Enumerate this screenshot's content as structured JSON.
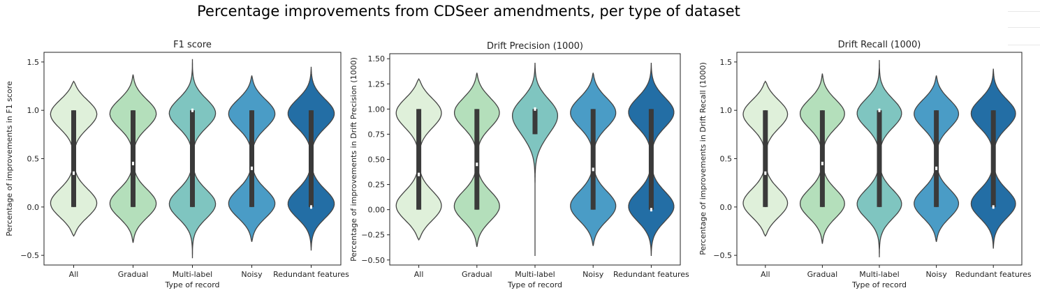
{
  "figure_title": "Percentage improvements from CDSeer amendments, per type of dataset",
  "colors": [
    "#dff0da",
    "#b4dfbb",
    "#7fc5c0",
    "#4a9cc6",
    "#236ea5"
  ],
  "chart_data": [
    {
      "type": "violin",
      "title": "F1 score",
      "xlabel": "Type of record",
      "ylabel": "Percentage of improvements in F1 score",
      "categories": [
        "All",
        "Gradual",
        "Multi-label",
        "Noisy",
        "Redundant features"
      ],
      "ylim": [
        -0.6,
        1.6
      ],
      "yticks": [
        -0.5,
        0.0,
        0.5,
        1.0,
        1.5
      ],
      "ytick_labels": [
        "−0.5",
        "0.0",
        "0.5",
        "1.0",
        "1.5"
      ],
      "grid": false,
      "violins": [
        {
          "min": -0.3,
          "max": 1.3,
          "q1": 0.0,
          "median": 0.35,
          "q3": 1.0
        },
        {
          "min": -0.37,
          "max": 1.37,
          "q1": 0.0,
          "median": 0.45,
          "q3": 1.0
        },
        {
          "min": -0.53,
          "max": 1.53,
          "q1": 0.0,
          "median": 1.0,
          "q3": 1.0
        },
        {
          "min": -0.36,
          "max": 1.36,
          "q1": 0.0,
          "median": 0.4,
          "q3": 1.0
        },
        {
          "min": -0.45,
          "max": 1.45,
          "q1": 0.0,
          "median": 0.0,
          "q3": 1.0
        }
      ]
    },
    {
      "type": "violin",
      "title": "Drift Precision (1000)",
      "xlabel": "Type of record",
      "ylabel": "Percentage of improvements in Drift Precision (1000)",
      "categories": [
        "All",
        "Gradual",
        "Multi-label",
        "Noisy",
        "Redundant features"
      ],
      "ylim": [
        -0.55,
        1.55
      ],
      "yticks": [
        -0.5,
        -0.25,
        0.0,
        0.25,
        0.5,
        0.75,
        1.0,
        1.25,
        1.5
      ],
      "ytick_labels": [
        "−0.50",
        "−0.25",
        "0.00",
        "0.25",
        "0.50",
        "0.75",
        "1.00",
        "1.25",
        "1.50"
      ],
      "grid": false,
      "violins": [
        {
          "min": -0.3,
          "max": 1.3,
          "q1": 0.0,
          "median": 0.35,
          "q3": 1.0
        },
        {
          "min": -0.37,
          "max": 1.36,
          "q1": 0.0,
          "median": 0.45,
          "q3": 1.0
        },
        {
          "min": -0.46,
          "max": 1.46,
          "q1": 0.75,
          "median": 1.0,
          "q3": 1.0
        },
        {
          "min": -0.36,
          "max": 1.36,
          "q1": 0.0,
          "median": 0.4,
          "q3": 1.0
        },
        {
          "min": -0.46,
          "max": 1.46,
          "q1": 0.0,
          "median": 0.0,
          "q3": 1.0
        }
      ]
    },
    {
      "type": "violin",
      "title": "Drift Recall (1000)",
      "xlabel": "Type of record",
      "ylabel": "Percentage of improvements in Drift Recall (1000)",
      "categories": [
        "All",
        "Gradual",
        "Multi-label",
        "Noisy",
        "Redundant features"
      ],
      "ylim": [
        -0.6,
        1.6
      ],
      "yticks": [
        -0.5,
        0.0,
        0.5,
        1.0,
        1.5
      ],
      "ytick_labels": [
        "−0.5",
        "0.0",
        "0.5",
        "1.0",
        "1.5"
      ],
      "grid": false,
      "violins": [
        {
          "min": -0.3,
          "max": 1.3,
          "q1": 0.0,
          "median": 0.35,
          "q3": 1.0
        },
        {
          "min": -0.38,
          "max": 1.38,
          "q1": 0.0,
          "median": 0.45,
          "q3": 1.0
        },
        {
          "min": -0.52,
          "max": 1.52,
          "q1": 0.0,
          "median": 1.0,
          "q3": 1.0
        },
        {
          "min": -0.36,
          "max": 1.36,
          "q1": 0.0,
          "median": 0.4,
          "q3": 1.0
        },
        {
          "min": -0.43,
          "max": 1.43,
          "q1": 0.0,
          "median": 0.0,
          "q3": 1.0
        }
      ]
    }
  ]
}
